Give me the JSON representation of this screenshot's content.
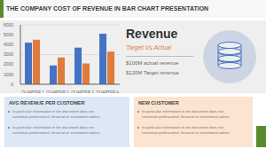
{
  "chart_data": {
    "type": "bar",
    "title": "THE COMPANY COST OF REVENUE IN BAR CHART PRESENTATION",
    "categories": [
      "QUARTER 1",
      "QUARTER 2",
      "QUARTER 3",
      "QUARTER 4"
    ],
    "series": [
      {
        "color": "#4472c4",
        "values": [
          4200,
          1900,
          3700,
          5100
        ]
      },
      {
        "color": "#e07b39",
        "values": [
          4500,
          2700,
          2100,
          3300
        ]
      }
    ],
    "ylim": [
      0,
      6000
    ],
    "yticks": [
      0,
      1000,
      2000,
      3000,
      4000,
      5000,
      6000
    ],
    "grid": true,
    "annotations": [
      "Revenue",
      "Target Vs Actual",
      "$100M actual revenue",
      "$120M Target revenue",
      "AVG REVENUE PER CUSTOMER",
      "In particular information in the document does not",
      "constitute professional, financial or investment advice",
      "In particular information in the document does not",
      "constitute professional, financial or investment advice",
      "NEW CUSTOMER",
      "In particular information in the document does not",
      "constitute professional, financial or investment advice",
      "In particular information in the document does not",
      "constitute professional, financial or investment advice"
    ]
  }
}
